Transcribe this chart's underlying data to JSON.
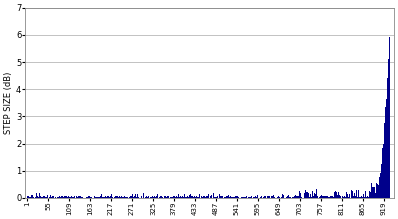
{
  "ylabel": "STEP SIZE (dB)",
  "xlim_min": 1,
  "xlim_max": 935,
  "ylim": [
    0,
    7
  ],
  "yticks": [
    0,
    1,
    2,
    3,
    4,
    5,
    6,
    7
  ],
  "xticks": [
    1,
    55,
    109,
    163,
    217,
    271,
    325,
    379,
    433,
    487,
    541,
    595,
    649,
    703,
    757,
    811,
    865,
    919
  ],
  "bar_color": "#00008B",
  "background_color": "#ffffff",
  "grid_color": "#aaaaaa",
  "n_points": 935,
  "spike_start": 900,
  "max_spike": 6.5,
  "figsize": [
    3.98,
    2.19
  ],
  "dpi": 100
}
